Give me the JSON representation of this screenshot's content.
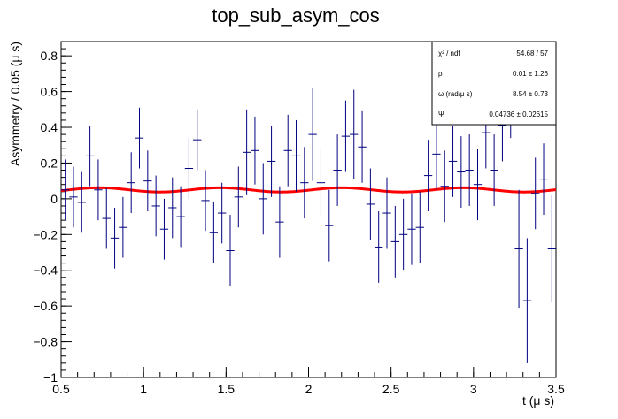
{
  "chart_data": {
    "type": "scatter",
    "title": "top_sub_asym_cos",
    "xlabel": "t (μ s)",
    "ylabel": "Asymmetry / 0.05 (μ s)",
    "xlim": [
      0.5,
      3.5
    ],
    "ylim": [
      -1.0,
      0.88
    ],
    "x_ticks": [
      0.5,
      1,
      1.5,
      2,
      2.5,
      3,
      3.5
    ],
    "x_tick_labels": [
      "0.5",
      "1",
      "1.5",
      "2",
      "2.5",
      "3",
      "3.5"
    ],
    "y_ticks": [
      -1,
      -0.8,
      -0.6,
      -0.4,
      -0.2,
      0,
      0.2,
      0.4,
      0.6,
      0.8
    ],
    "y_tick_labels": [
      "−1",
      "−0.8",
      "−0.6",
      "−0.4",
      "−0.2",
      "0",
      "0.2",
      "0.4",
      "0.6",
      "0.8"
    ],
    "bin_width": 0.05,
    "series": [
      {
        "kind": "data_points_with_errors",
        "color": "#000080",
        "points": [
          {
            "x": 0.525,
            "y": 0.05,
            "err": 0.17
          },
          {
            "x": 0.575,
            "y": 0.01,
            "err": 0.17
          },
          {
            "x": 0.625,
            "y": -0.02,
            "err": 0.17
          },
          {
            "x": 0.675,
            "y": 0.24,
            "err": 0.17
          },
          {
            "x": 0.725,
            "y": 0.05,
            "err": 0.17
          },
          {
            "x": 0.775,
            "y": -0.11,
            "err": 0.17
          },
          {
            "x": 0.825,
            "y": -0.22,
            "err": 0.17
          },
          {
            "x": 0.875,
            "y": -0.16,
            "err": 0.17
          },
          {
            "x": 0.925,
            "y": 0.09,
            "err": 0.17
          },
          {
            "x": 0.975,
            "y": 0.34,
            "err": 0.17
          },
          {
            "x": 1.025,
            "y": 0.1,
            "err": 0.17
          },
          {
            "x": 1.075,
            "y": -0.04,
            "err": 0.17
          },
          {
            "x": 1.125,
            "y": -0.17,
            "err": 0.17
          },
          {
            "x": 1.175,
            "y": -0.05,
            "err": 0.17
          },
          {
            "x": 1.225,
            "y": -0.1,
            "err": 0.17
          },
          {
            "x": 1.275,
            "y": 0.17,
            "err": 0.17
          },
          {
            "x": 1.325,
            "y": 0.33,
            "err": 0.17
          },
          {
            "x": 1.375,
            "y": -0.01,
            "err": 0.17
          },
          {
            "x": 1.425,
            "y": -0.19,
            "err": 0.17
          },
          {
            "x": 1.475,
            "y": -0.08,
            "err": 0.17
          },
          {
            "x": 1.525,
            "y": -0.29,
            "err": 0.2
          },
          {
            "x": 1.575,
            "y": 0.01,
            "err": 0.17
          },
          {
            "x": 1.625,
            "y": 0.26,
            "err": 0.24
          },
          {
            "x": 1.675,
            "y": 0.27,
            "err": 0.19
          },
          {
            "x": 1.725,
            "y": 0.0,
            "err": 0.2
          },
          {
            "x": 1.775,
            "y": 0.21,
            "err": 0.2
          },
          {
            "x": 1.825,
            "y": -0.13,
            "err": 0.2
          },
          {
            "x": 1.875,
            "y": 0.27,
            "err": 0.2
          },
          {
            "x": 1.925,
            "y": 0.24,
            "err": 0.2
          },
          {
            "x": 1.975,
            "y": 0.09,
            "err": 0.2
          },
          {
            "x": 2.025,
            "y": 0.36,
            "err": 0.26
          },
          {
            "x": 2.075,
            "y": 0.09,
            "err": 0.2
          },
          {
            "x": 2.125,
            "y": -0.15,
            "err": 0.2
          },
          {
            "x": 2.175,
            "y": 0.16,
            "err": 0.2
          },
          {
            "x": 2.225,
            "y": 0.35,
            "err": 0.2
          },
          {
            "x": 2.275,
            "y": 0.36,
            "err": 0.25
          },
          {
            "x": 2.325,
            "y": 0.29,
            "err": 0.2
          },
          {
            "x": 2.375,
            "y": -0.03,
            "err": 0.2
          },
          {
            "x": 2.425,
            "y": -0.27,
            "err": 0.2
          },
          {
            "x": 2.475,
            "y": -0.08,
            "err": 0.2
          },
          {
            "x": 2.525,
            "y": -0.24,
            "err": 0.2
          },
          {
            "x": 2.575,
            "y": -0.2,
            "err": 0.2
          },
          {
            "x": 2.625,
            "y": -0.17,
            "err": 0.2
          },
          {
            "x": 2.675,
            "y": -0.16,
            "err": 0.2
          },
          {
            "x": 2.725,
            "y": 0.13,
            "err": 0.2
          },
          {
            "x": 2.775,
            "y": 0.25,
            "err": 0.2
          },
          {
            "x": 2.825,
            "y": 0.07,
            "err": 0.2
          },
          {
            "x": 2.875,
            "y": 0.21,
            "err": 0.2
          },
          {
            "x": 2.925,
            "y": 0.15,
            "err": 0.2
          },
          {
            "x": 2.975,
            "y": 0.16,
            "err": 0.2
          },
          {
            "x": 3.025,
            "y": 0.08,
            "err": 0.2
          },
          {
            "x": 3.075,
            "y": 0.37,
            "err": 0.2
          },
          {
            "x": 3.125,
            "y": 0.16,
            "err": 0.2
          },
          {
            "x": 3.175,
            "y": 0.41,
            "err": 0.2
          },
          {
            "x": 3.225,
            "y": 0.54,
            "err": 0.2
          },
          {
            "x": 3.275,
            "y": -0.28,
            "err": 0.33
          },
          {
            "x": 3.325,
            "y": -0.57,
            "err": 0.35
          },
          {
            "x": 3.375,
            "y": 0.03,
            "err": 0.2
          },
          {
            "x": 3.425,
            "y": 0.11,
            "err": 0.2
          },
          {
            "x": 3.475,
            "y": -0.28,
            "err": 0.3
          }
        ]
      },
      {
        "kind": "fit_curve",
        "color": "#ff0000",
        "function": "offset + A*cos(omega*t + phi)",
        "offset": 0.05,
        "amplitude": 0.012,
        "omega": 8.54,
        "phase": 0.04736
      }
    ],
    "stats_box": {
      "rows": [
        {
          "label": "χ² / ndf",
          "value": "54.68 / 57"
        },
        {
          "label": "ρ",
          "value": "0.01 ± 1.26"
        },
        {
          "label": "ω (rad/μ s)",
          "value": "8.54 ± 0.73"
        },
        {
          "label": "Ψ",
          "value": "0.04736 ± 0.02615"
        }
      ],
      "placement": "top-right"
    },
    "grid": false,
    "legend": "none"
  }
}
